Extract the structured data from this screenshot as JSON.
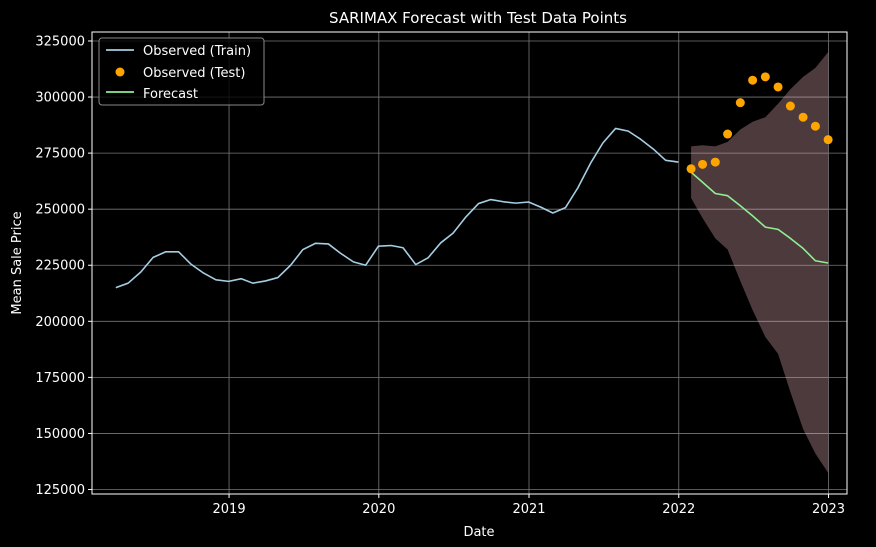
{
  "chart_data": {
    "type": "line",
    "title": "SARIMAX Forecast with Test Data Points",
    "xlabel": "Date",
    "ylabel": "Mean Sale Price",
    "x_ticks": [
      "2019",
      "2020",
      "2021",
      "2022",
      "2023"
    ],
    "y_ticks": [
      125000,
      150000,
      175000,
      200000,
      225000,
      250000,
      275000,
      300000,
      325000
    ],
    "xlim": [
      "2018-02-01",
      "2023-02-15"
    ],
    "ylim": [
      123000,
      329000
    ],
    "grid": true,
    "legend_position": "top-left",
    "colors": {
      "train": "#a6cee3",
      "test": "#ffa500",
      "forecast": "#90ee90",
      "confidence": "#ffc0cb"
    },
    "legend": [
      "Observed (Train)",
      "Observed (Test)",
      "Forecast"
    ],
    "series": [
      {
        "name": "Observed (Train)",
        "kind": "line",
        "x": [
          "2018-03-31",
          "2018-04-30",
          "2018-05-31",
          "2018-06-30",
          "2018-07-31",
          "2018-08-31",
          "2018-09-30",
          "2018-10-31",
          "2018-11-30",
          "2018-12-31",
          "2019-01-31",
          "2019-02-28",
          "2019-03-31",
          "2019-04-30",
          "2019-05-31",
          "2019-06-30",
          "2019-07-31",
          "2019-08-31",
          "2019-09-30",
          "2019-10-31",
          "2019-11-30",
          "2019-12-31",
          "2020-01-31",
          "2020-02-29",
          "2020-03-31",
          "2020-04-30",
          "2020-05-31",
          "2020-06-30",
          "2020-07-31",
          "2020-08-31",
          "2020-09-30",
          "2020-10-31",
          "2020-11-30",
          "2020-12-31",
          "2021-01-31",
          "2021-02-28",
          "2021-03-31",
          "2021-04-30",
          "2021-05-31",
          "2021-06-30",
          "2021-07-31",
          "2021-08-31",
          "2021-09-30",
          "2021-10-31",
          "2021-11-30",
          "2021-12-31"
        ],
        "y": [
          215000,
          217000,
          222000,
          228500,
          231000,
          231000,
          225500,
          221500,
          218500,
          217800,
          219000,
          217000,
          218000,
          219500,
          225000,
          232000,
          234800,
          234500,
          230300,
          226500,
          225000,
          233500,
          233800,
          232800,
          225300,
          228300,
          235000,
          239300,
          246500,
          252500,
          254300,
          253300,
          252700,
          253200,
          250800,
          248300,
          250700,
          259500,
          270500,
          279500,
          286000,
          284800,
          281200,
          276800,
          271800,
          271000
        ]
      },
      {
        "name": "Observed (Test)",
        "kind": "scatter",
        "x": [
          "2022-01-31",
          "2022-02-28",
          "2022-03-31",
          "2022-04-30",
          "2022-05-31",
          "2022-06-30",
          "2022-07-31",
          "2022-08-31",
          "2022-09-30",
          "2022-10-31",
          "2022-11-30",
          "2022-12-31"
        ],
        "y": [
          268000,
          270000,
          271000,
          283500,
          297500,
          307500,
          309000,
          304500,
          296000,
          291000,
          287000,
          281000
        ]
      },
      {
        "name": "Forecast",
        "kind": "line",
        "x": [
          "2022-01-31",
          "2022-02-28",
          "2022-03-31",
          "2022-04-30",
          "2022-05-31",
          "2022-06-30",
          "2022-07-31",
          "2022-08-31",
          "2022-09-30",
          "2022-10-31",
          "2022-11-30",
          "2022-12-31"
        ],
        "y": [
          266500,
          262000,
          257000,
          256000,
          251500,
          247000,
          242000,
          241000,
          237000,
          232500,
          227000,
          226000
        ]
      }
    ],
    "confidence_band": {
      "x": [
        "2022-01-31",
        "2022-02-28",
        "2022-03-31",
        "2022-04-30",
        "2022-05-31",
        "2022-06-30",
        "2022-07-31",
        "2022-08-31",
        "2022-09-30",
        "2022-10-31",
        "2022-11-30",
        "2022-12-31"
      ],
      "upper": [
        278000,
        278500,
        278000,
        280000,
        285500,
        289000,
        291000,
        297000,
        303500,
        309000,
        313000,
        320000
      ],
      "lower": [
        255000,
        246000,
        237000,
        232000,
        218000,
        205000,
        193000,
        185500,
        168500,
        152000,
        141000,
        132500
      ]
    }
  }
}
